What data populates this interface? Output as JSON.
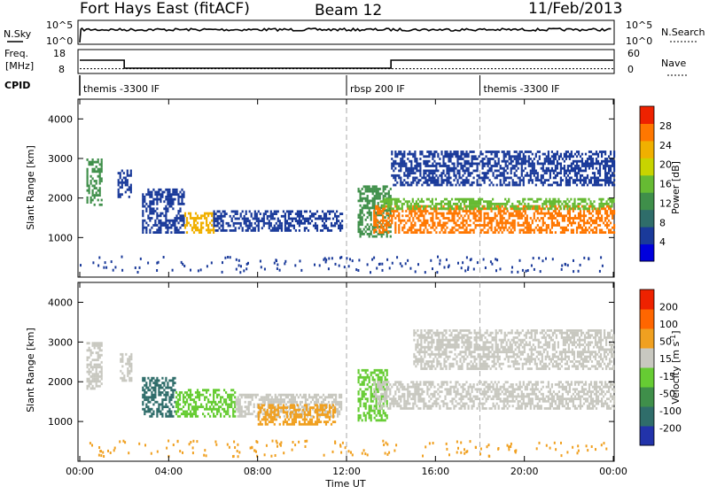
{
  "header": {
    "radar": "Fort Hays East (fitACF)",
    "beam": "Beam 12",
    "date": "11/Feb/2013"
  },
  "top_panel": {
    "left_label": "N.Sky",
    "left_ticks": [
      "10^5",
      "10^0"
    ],
    "right_ticks": [
      "10^5",
      "10^0"
    ],
    "right_label": "N.Search"
  },
  "freq_panel": {
    "left_label_1": "Freq.",
    "left_label_2": "[MHz]",
    "left_ticks": [
      "18",
      "8"
    ],
    "right_ticks": [
      "60",
      "0"
    ],
    "right_label": "Nave",
    "freq_steps": [
      {
        "from": 0,
        "to": 2.0,
        "mhz": 15
      },
      {
        "from": 2.0,
        "to": 14.0,
        "mhz": 10.5
      },
      {
        "from": 14.0,
        "to": 24.0,
        "mhz": 15
      }
    ],
    "nave_level": 13
  },
  "cpid": {
    "label": "CPID",
    "segments": [
      {
        "start": 0.0,
        "name": "themis -3300 IF"
      },
      {
        "start": 12.0,
        "name": "rbsp 200 IF"
      },
      {
        "start": 18.0,
        "name": "themis -3300 IF"
      }
    ]
  },
  "chart_data": [
    {
      "type": "heatmap",
      "title": "",
      "ylabel": "Slant Range [km]",
      "xlabel": "",
      "xlim": [
        0,
        24
      ],
      "ylim": [
        0,
        4500
      ],
      "yticks": [
        "1000",
        "2000",
        "3000",
        "4000"
      ],
      "colorbar": {
        "label": "Power [dB]",
        "ticks": [
          "28",
          "24",
          "20",
          "16",
          "12",
          "8",
          "4"
        ],
        "colors": [
          "#0000dd",
          "#1a3a9a",
          "#2f6d6a",
          "#3f8f4a",
          "#66bb33",
          "#c8d400",
          "#f0b000",
          "#ff7700",
          "#ee2200"
        ]
      },
      "regions": [
        {
          "t0": 0.3,
          "t1": 1.0,
          "r0": 1800,
          "r1": 3000,
          "color": "#3f8f4a"
        },
        {
          "t0": 1.7,
          "t1": 2.3,
          "r0": 2000,
          "r1": 2700,
          "color": "#1a3a9a"
        },
        {
          "t0": 2.8,
          "t1": 4.7,
          "r0": 1100,
          "r1": 2200,
          "color": "#1a3a9a"
        },
        {
          "t0": 4.7,
          "t1": 6.0,
          "r0": 1100,
          "r1": 1600,
          "color": "#f0b000"
        },
        {
          "t0": 6.0,
          "t1": 11.8,
          "r0": 1150,
          "r1": 1650,
          "color": "#1a3a9a"
        },
        {
          "t0": 12.5,
          "t1": 14.0,
          "r0": 1000,
          "r1": 2300,
          "color": "#3f8f4a"
        },
        {
          "t0": 13.2,
          "t1": 24.0,
          "r0": 1100,
          "r1": 1800,
          "color": "#ff7700"
        },
        {
          "t0": 13.5,
          "t1": 24.0,
          "r0": 1700,
          "r1": 2000,
          "color": "#66bb33"
        },
        {
          "t0": 14.0,
          "t1": 24.0,
          "r0": 2300,
          "r1": 3200,
          "color": "#1a3a9a"
        }
      ]
    },
    {
      "type": "heatmap",
      "title": "",
      "ylabel": "Slant Range [km]",
      "xlabel": "Time UT",
      "xlim": [
        0,
        24
      ],
      "ylim": [
        0,
        4500
      ],
      "xticks": [
        "00:00",
        "04:00",
        "08:00",
        "12:00",
        "16:00",
        "20:00",
        "00:00"
      ],
      "yticks": [
        "1000",
        "2000",
        "3000",
        "4000"
      ],
      "colorbar": {
        "label": "Velocity [m s-1]",
        "ticks": [
          "200",
          "100",
          "50",
          "15",
          "-15",
          "-50",
          "-100",
          "-200"
        ],
        "colors": [
          "#2233aa",
          "#2f6d6a",
          "#3f8f4a",
          "#66cc33",
          "#c8c8c0",
          "#f0a020",
          "#ff6600",
          "#ee2200"
        ]
      },
      "regions": [
        {
          "t0": 0.3,
          "t1": 1.0,
          "r0": 1800,
          "r1": 3000,
          "color": "#c8c8c0"
        },
        {
          "t0": 1.8,
          "t1": 2.3,
          "r0": 2000,
          "r1": 2700,
          "color": "#c8c8c0"
        },
        {
          "t0": 2.8,
          "t1": 4.3,
          "r0": 1100,
          "r1": 2100,
          "color": "#2f6d6a"
        },
        {
          "t0": 4.3,
          "t1": 7.0,
          "r0": 1100,
          "r1": 1800,
          "color": "#66cc33"
        },
        {
          "t0": 7.0,
          "t1": 11.8,
          "r0": 1100,
          "r1": 1700,
          "color": "#c8c8c0"
        },
        {
          "t0": 8.0,
          "t1": 11.5,
          "r0": 900,
          "r1": 1400,
          "color": "#f0a020"
        },
        {
          "t0": 12.5,
          "t1": 13.8,
          "r0": 1000,
          "r1": 2300,
          "color": "#66cc33"
        },
        {
          "t0": 13.2,
          "t1": 24.0,
          "r0": 1300,
          "r1": 2000,
          "color": "#c8c8c0"
        },
        {
          "t0": 15.0,
          "t1": 24.0,
          "r0": 2300,
          "r1": 3300,
          "color": "#c8c8c0"
        }
      ]
    }
  ]
}
